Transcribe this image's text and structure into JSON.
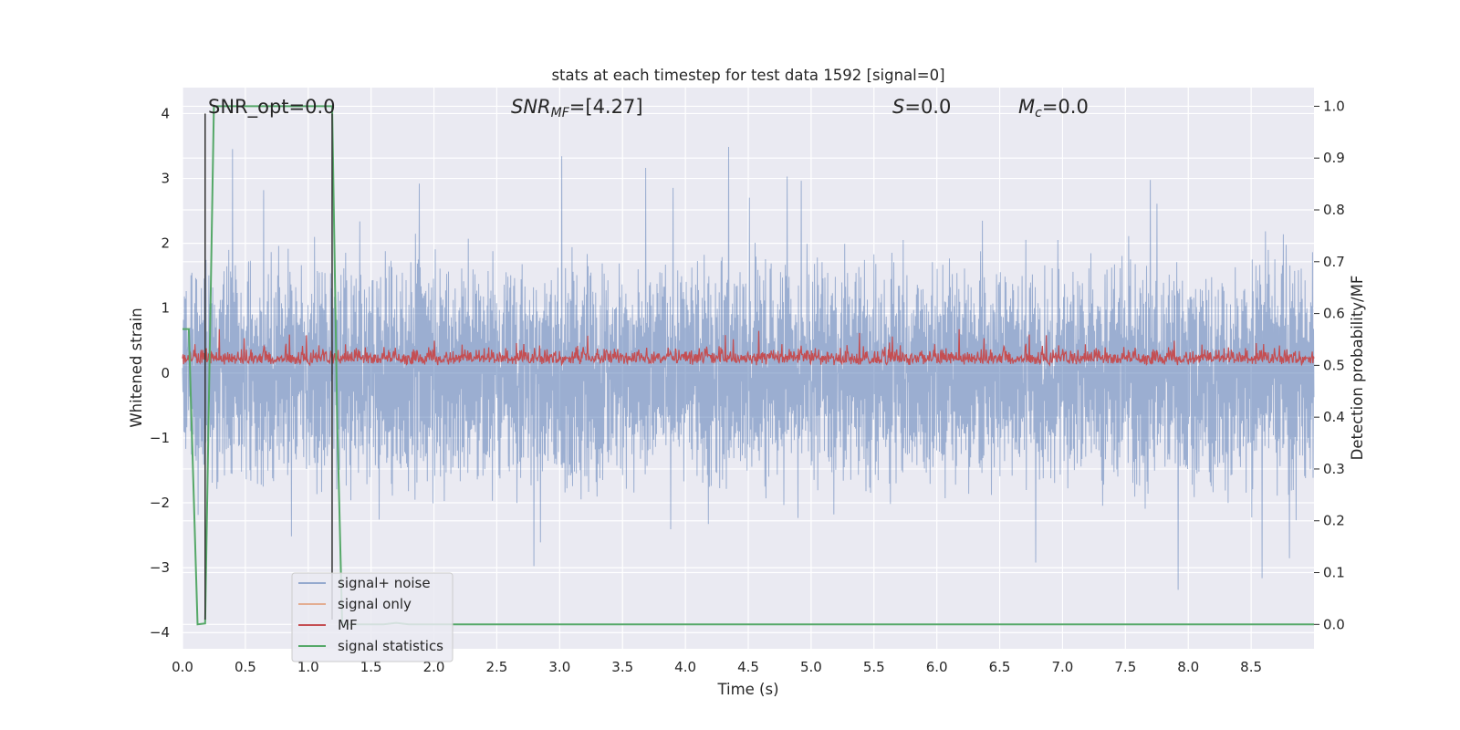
{
  "chart_data": {
    "type": "line",
    "title": "stats at each timestep for test data 1592 [signal=0]",
    "xlabel": "Time (s)",
    "ylabel": "Whitened strain",
    "y2label": "Detection probability/MF",
    "xlim": [
      0.0,
      9.0
    ],
    "ylim": [
      -4.25,
      4.4
    ],
    "y2lim": [
      -0.047,
      1.036
    ],
    "xticks": [
      "0.0",
      "0.5",
      "1.0",
      "1.5",
      "2.0",
      "2.5",
      "3.0",
      "3.5",
      "4.0",
      "4.5",
      "5.0",
      "5.5",
      "6.0",
      "6.5",
      "7.0",
      "7.5",
      "8.0",
      "8.5"
    ],
    "yticks": [
      "−4",
      "−3",
      "−2",
      "−1",
      "0",
      "1",
      "2",
      "3",
      "4"
    ],
    "y2ticks": [
      "0.0",
      "0.1",
      "0.2",
      "0.3",
      "0.4",
      "0.5",
      "0.6",
      "0.7",
      "0.8",
      "0.9",
      "1.0"
    ],
    "grid": true,
    "legend_position": "lower-left",
    "annotations": {
      "snr_opt": "SNR_opt=0.0",
      "snr_mf_main": "SNR",
      "snr_mf_sub": "MF",
      "snr_mf_rest": "=[4.27]",
      "s_main": "S",
      "s_rest": "=0.0",
      "mc_main": "M",
      "mc_sub": "c",
      "mc_rest": "=0.0"
    },
    "series": [
      {
        "name": "signal+ noise",
        "color": "#4c72b0",
        "axis": "left",
        "description_amplitude": {
          "x_start": 0.0,
          "x_end": 9.0,
          "upper_typical": 2.0,
          "lower_typical": -2.0,
          "upper_peak": 3.55,
          "lower_peak": -3.9
        }
      },
      {
        "name": "signal only",
        "color": "#dd8452",
        "axis": "left",
        "x": [
          0.0,
          9.0
        ],
        "values": [
          0.0,
          0.0
        ]
      },
      {
        "name": "MF",
        "color": "#c44e52",
        "axis": "right",
        "description_amplitude": {
          "x_start": 0.0,
          "x_end": 9.0,
          "base": 0.5,
          "typical_max": 0.55,
          "peak": 0.57
        }
      },
      {
        "name": "signal statistics",
        "color": "#55a868",
        "axis": "right",
        "x": [
          0.0,
          0.05,
          0.12,
          0.18,
          0.25,
          1.19,
          1.23,
          1.27,
          1.5,
          1.6,
          1.7,
          1.8,
          9.0
        ],
        "values": [
          0.57,
          0.57,
          0.0,
          0.002,
          1.0,
          1.0,
          0.4,
          0.0,
          0.0,
          0.0,
          0.003,
          0.0,
          0.0
        ]
      }
    ],
    "vertical_markers": [
      {
        "name": "marker-1",
        "x": 0.18,
        "color": "#333333"
      },
      {
        "name": "marker-2",
        "x": 1.19,
        "color": "#333333"
      }
    ]
  }
}
